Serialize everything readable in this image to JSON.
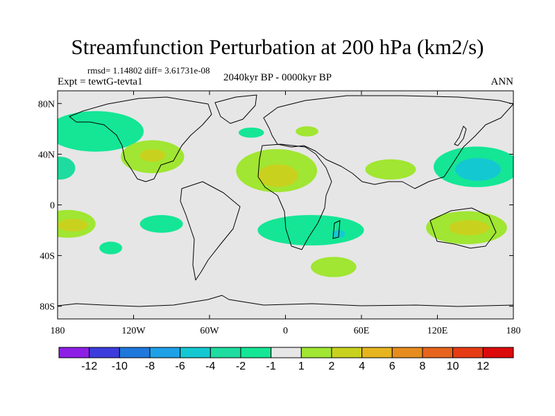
{
  "title": "Streamfunction Perturbation at 200 hPa (km2/s)",
  "stats": "rmsd= 1.14802 diff= 3.61731e-08",
  "expt": "Expt = tewtG-tevta1",
  "period": "2040kyr BP - 0000kyr BP",
  "season": "ANN",
  "chart_data": {
    "type": "heatmap",
    "map_projection": "cylindrical-equidistant",
    "lon_range": [
      -180,
      180
    ],
    "lat_range": [
      -90,
      90
    ],
    "x_ticks": [
      {
        "value": -180,
        "label": "180"
      },
      {
        "value": -120,
        "label": "120W"
      },
      {
        "value": -60,
        "label": "60W"
      },
      {
        "value": 0,
        "label": "0"
      },
      {
        "value": 60,
        "label": "60E"
      },
      {
        "value": 120,
        "label": "120E"
      },
      {
        "value": 180,
        "label": "180"
      }
    ],
    "y_ticks": [
      {
        "value": 80,
        "label": "80N"
      },
      {
        "value": 40,
        "label": "40N"
      },
      {
        "value": 0,
        "label": "0"
      },
      {
        "value": -40,
        "label": "40S"
      },
      {
        "value": -80,
        "label": "80S"
      }
    ],
    "colorbar": {
      "colors": [
        "#8c1ee6",
        "#3c3cdc",
        "#1e78dc",
        "#1ea0e6",
        "#14c8d2",
        "#1edca0",
        "#14e696",
        "#e6e6e6",
        "#a0e632",
        "#c8d21e",
        "#e6b41e",
        "#e68c1e",
        "#e6641e",
        "#e63c14",
        "#dc0a0a"
      ],
      "labels": [
        "-12",
        "-10",
        "-8",
        "-6",
        "-4",
        "-2",
        "-1",
        "1",
        "2",
        "4",
        "6",
        "8",
        "10",
        "12"
      ]
    },
    "anomaly_regions": [
      {
        "name": "n-pacific-west",
        "lon": -178,
        "lat": 29,
        "rx": 12,
        "ry": 9,
        "level": "-2 to -1"
      },
      {
        "name": "n-america-arc",
        "lon": -150,
        "lat": 58,
        "rx": 38,
        "ry": 16,
        "level": "-1 to 1 (neg)"
      },
      {
        "name": "usa-east",
        "lon": -105,
        "lat": 38,
        "rx": 25,
        "ry": 13,
        "level": "1 to 2"
      },
      {
        "name": "usa-east-core",
        "lon": -105,
        "lat": 39,
        "rx": 10,
        "ry": 5,
        "level": "2 to 4"
      },
      {
        "name": "n-atlantic",
        "lon": -27,
        "lat": 57,
        "rx": 10,
        "ry": 4,
        "level": "-1 to 1 (neg)"
      },
      {
        "name": "europe",
        "lon": 17,
        "lat": 58,
        "rx": 9,
        "ry": 4,
        "level": "1 to 2"
      },
      {
        "name": "sahara",
        "lon": -7,
        "lat": 27,
        "rx": 32,
        "ry": 17,
        "level": "1 to 2"
      },
      {
        "name": "sahara-core",
        "lon": -6,
        "lat": 23,
        "rx": 16,
        "ry": 9,
        "level": "2 to 4"
      },
      {
        "name": "central-asia",
        "lon": 83,
        "lat": 28,
        "rx": 20,
        "ry": 8,
        "level": "1 to 2"
      },
      {
        "name": "nw-pacific",
        "lon": 151,
        "lat": 30,
        "rx": 34,
        "ry": 16,
        "level": "-1 to -2"
      },
      {
        "name": "nw-pacific-core",
        "lon": 152,
        "lat": 28,
        "rx": 18,
        "ry": 9,
        "level": "-2 to -4"
      },
      {
        "name": "s-pacific-west",
        "lon": -172,
        "lat": -15,
        "rx": 22,
        "ry": 11,
        "level": "1 to 2"
      },
      {
        "name": "s-pacific-west-core",
        "lon": -168,
        "lat": -16,
        "rx": 12,
        "ry": 5,
        "level": "2 to 4"
      },
      {
        "name": "se-pacific",
        "lon": -98,
        "lat": -15,
        "rx": 17,
        "ry": 7,
        "level": "-1 to 1 (neg)"
      },
      {
        "name": "s-pacific-south",
        "lon": -138,
        "lat": -34,
        "rx": 9,
        "ry": 5,
        "level": "-1 to 1 (neg)"
      },
      {
        "name": "s-atlantic-indian",
        "lon": 20,
        "lat": -20,
        "rx": 42,
        "ry": 12,
        "level": "-1 to 1 (neg)"
      },
      {
        "name": "mozambique-core",
        "lon": 42,
        "lat": -23,
        "rx": 5,
        "ry": 3,
        "level": "-2 to -4"
      },
      {
        "name": "southern-ocean",
        "lon": 38,
        "lat": -49,
        "rx": 18,
        "ry": 8,
        "level": "1 to 2"
      },
      {
        "name": "australia",
        "lon": 143,
        "lat": -18,
        "rx": 32,
        "ry": 13,
        "level": "1 to 2"
      },
      {
        "name": "australia-core",
        "lon": 145,
        "lat": -18,
        "rx": 16,
        "ry": 6,
        "level": "2 to 4"
      }
    ]
  }
}
